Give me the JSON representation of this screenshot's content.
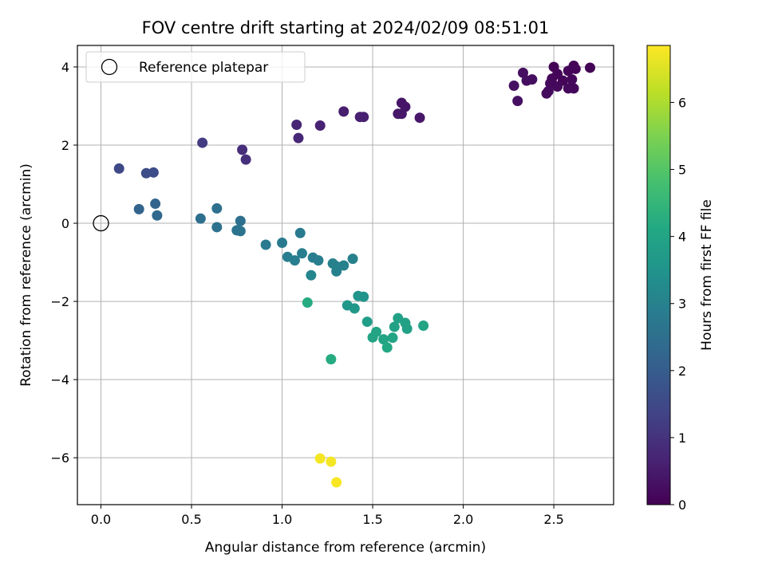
{
  "chart_data": {
    "type": "scatter",
    "title": "FOV centre drift starting at 2024/02/09 08:51:01",
    "xlabel": "Angular distance from reference (arcmin)",
    "ylabel": "Rotation from reference (arcmin)",
    "xlim": [
      -0.13,
      2.83
    ],
    "ylim": [
      -7.2,
      4.55
    ],
    "xticks": [
      0.0,
      0.5,
      1.0,
      1.5,
      2.0,
      2.5
    ],
    "xtick_labels": [
      "0.0",
      "0.5",
      "1.0",
      "1.5",
      "2.0",
      "2.5"
    ],
    "yticks": [
      -6,
      -4,
      -2,
      0,
      2,
      4
    ],
    "ytick_labels": [
      "−6",
      "−4",
      "−2",
      "0",
      "2",
      "4"
    ],
    "grid": true,
    "legend": {
      "position": "top-left",
      "entries": [
        "Reference platepar"
      ]
    },
    "colormap": "viridis",
    "colorbar": {
      "label": "Hours from first FF file",
      "range": [
        0,
        6.85
      ],
      "ticks": [
        0,
        1,
        2,
        3,
        4,
        5,
        6
      ],
      "tick_labels": [
        "0",
        "1",
        "2",
        "3",
        "4",
        "5",
        "6"
      ]
    },
    "reference_point": {
      "x": 0.0,
      "y": 0.0,
      "name": "Reference platepar"
    },
    "series": [
      {
        "points": [
          {
            "x": 2.5,
            "y": 4.0,
            "c": 0.05
          },
          {
            "x": 2.61,
            "y": 4.03,
            "c": 0.05
          },
          {
            "x": 2.7,
            "y": 3.98,
            "c": 0.05
          },
          {
            "x": 2.58,
            "y": 3.9,
            "c": 0.1
          },
          {
            "x": 2.62,
            "y": 3.95,
            "c": 0.1
          },
          {
            "x": 2.52,
            "y": 3.82,
            "c": 0.1
          },
          {
            "x": 2.49,
            "y": 3.7,
            "c": 0.1
          },
          {
            "x": 2.55,
            "y": 3.65,
            "c": 0.1
          },
          {
            "x": 2.6,
            "y": 3.68,
            "c": 0.15
          },
          {
            "x": 2.48,
            "y": 3.58,
            "c": 0.15
          },
          {
            "x": 2.52,
            "y": 3.5,
            "c": 0.15
          },
          {
            "x": 2.58,
            "y": 3.45,
            "c": 0.15
          },
          {
            "x": 2.61,
            "y": 3.45,
            "c": 0.15
          },
          {
            "x": 2.47,
            "y": 3.38,
            "c": 0.2
          },
          {
            "x": 2.46,
            "y": 3.32,
            "c": 0.2
          },
          {
            "x": 2.33,
            "y": 3.85,
            "c": 0.25
          },
          {
            "x": 2.35,
            "y": 3.65,
            "c": 0.25
          },
          {
            "x": 2.38,
            "y": 3.68,
            "c": 0.25
          },
          {
            "x": 2.28,
            "y": 3.52,
            "c": 0.3
          },
          {
            "x": 2.3,
            "y": 3.13,
            "c": 0.3
          },
          {
            "x": 1.66,
            "y": 3.08,
            "c": 0.4
          },
          {
            "x": 1.68,
            "y": 2.98,
            "c": 0.4
          },
          {
            "x": 1.64,
            "y": 2.8,
            "c": 0.45
          },
          {
            "x": 1.66,
            "y": 2.8,
            "c": 0.45
          },
          {
            "x": 1.76,
            "y": 2.7,
            "c": 0.45
          },
          {
            "x": 1.34,
            "y": 2.86,
            "c": 0.55
          },
          {
            "x": 1.43,
            "y": 2.72,
            "c": 0.6
          },
          {
            "x": 1.45,
            "y": 2.72,
            "c": 0.6
          },
          {
            "x": 1.21,
            "y": 2.5,
            "c": 0.65
          },
          {
            "x": 1.08,
            "y": 2.52,
            "c": 0.7
          },
          {
            "x": 1.09,
            "y": 2.18,
            "c": 0.75
          },
          {
            "x": 0.78,
            "y": 1.88,
            "c": 0.9
          },
          {
            "x": 0.8,
            "y": 1.63,
            "c": 0.95
          },
          {
            "x": 0.56,
            "y": 2.06,
            "c": 1.2
          },
          {
            "x": 0.1,
            "y": 1.4,
            "c": 1.5
          },
          {
            "x": 0.25,
            "y": 1.28,
            "c": 1.6
          },
          {
            "x": 0.29,
            "y": 1.3,
            "c": 1.6
          },
          {
            "x": 0.3,
            "y": 0.5,
            "c": 2.2
          },
          {
            "x": 0.21,
            "y": 0.36,
            "c": 2.2
          },
          {
            "x": 0.31,
            "y": 0.2,
            "c": 2.3
          },
          {
            "x": 0.64,
            "y": 0.38,
            "c": 2.5
          },
          {
            "x": 0.55,
            "y": 0.12,
            "c": 2.5
          },
          {
            "x": 0.77,
            "y": 0.06,
            "c": 2.55
          },
          {
            "x": 0.64,
            "y": -0.1,
            "c": 2.55
          },
          {
            "x": 0.75,
            "y": -0.18,
            "c": 2.6
          },
          {
            "x": 0.77,
            "y": -0.2,
            "c": 2.6
          },
          {
            "x": 1.1,
            "y": -0.25,
            "c": 2.8
          },
          {
            "x": 0.91,
            "y": -0.55,
            "c": 2.8
          },
          {
            "x": 1.0,
            "y": -0.5,
            "c": 2.8
          },
          {
            "x": 1.11,
            "y": -0.77,
            "c": 2.9
          },
          {
            "x": 1.03,
            "y": -0.86,
            "c": 2.9
          },
          {
            "x": 1.07,
            "y": -0.95,
            "c": 2.9
          },
          {
            "x": 1.17,
            "y": -0.88,
            "c": 2.9
          },
          {
            "x": 1.2,
            "y": -0.95,
            "c": 2.9
          },
          {
            "x": 1.28,
            "y": -1.03,
            "c": 3.0
          },
          {
            "x": 1.3,
            "y": -1.1,
            "c": 3.0
          },
          {
            "x": 1.34,
            "y": -1.08,
            "c": 3.0
          },
          {
            "x": 1.39,
            "y": -0.91,
            "c": 3.0
          },
          {
            "x": 1.3,
            "y": -1.23,
            "c": 3.0
          },
          {
            "x": 1.16,
            "y": -1.33,
            "c": 3.1
          },
          {
            "x": 1.42,
            "y": -1.86,
            "c": 3.5
          },
          {
            "x": 1.45,
            "y": -1.88,
            "c": 3.5
          },
          {
            "x": 1.36,
            "y": -2.1,
            "c": 3.6
          },
          {
            "x": 1.4,
            "y": -2.18,
            "c": 3.6
          },
          {
            "x": 1.14,
            "y": -2.03,
            "c": 4.2
          },
          {
            "x": 1.47,
            "y": -2.52,
            "c": 3.8
          },
          {
            "x": 1.64,
            "y": -2.43,
            "c": 3.9
          },
          {
            "x": 1.68,
            "y": -2.55,
            "c": 3.9
          },
          {
            "x": 1.62,
            "y": -2.65,
            "c": 3.9
          },
          {
            "x": 1.69,
            "y": -2.7,
            "c": 3.9
          },
          {
            "x": 1.78,
            "y": -2.62,
            "c": 4.0
          },
          {
            "x": 1.52,
            "y": -2.78,
            "c": 4.0
          },
          {
            "x": 1.5,
            "y": -2.92,
            "c": 4.0
          },
          {
            "x": 1.56,
            "y": -2.97,
            "c": 4.0
          },
          {
            "x": 1.61,
            "y": -2.93,
            "c": 4.0
          },
          {
            "x": 1.58,
            "y": -3.18,
            "c": 4.1
          },
          {
            "x": 1.27,
            "y": -3.48,
            "c": 4.2
          },
          {
            "x": 1.21,
            "y": -6.02,
            "c": 6.75
          },
          {
            "x": 1.27,
            "y": -6.1,
            "c": 6.75
          },
          {
            "x": 1.3,
            "y": -6.63,
            "c": 6.8
          }
        ]
      }
    ]
  }
}
